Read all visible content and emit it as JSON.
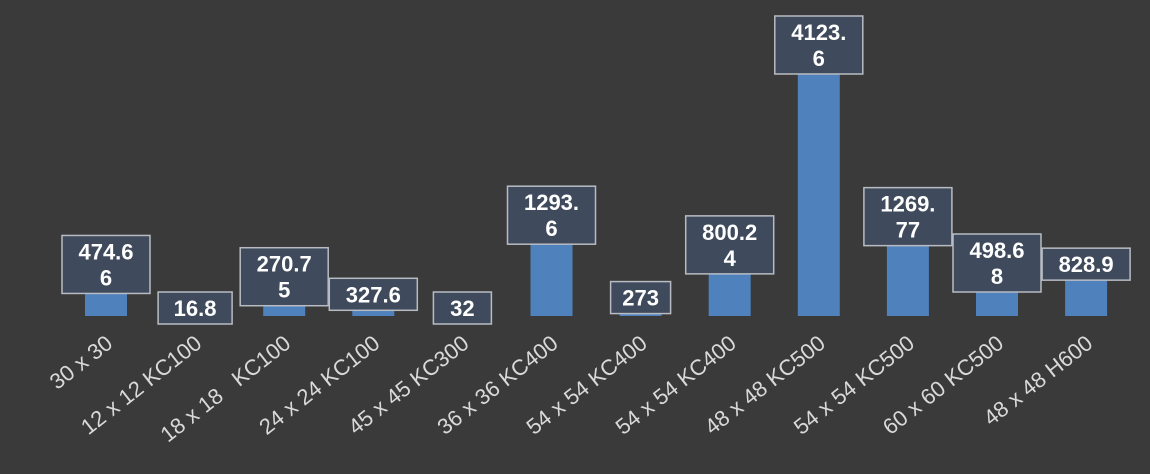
{
  "chart_data": {
    "type": "bar",
    "title": "",
    "xlabel": "",
    "ylabel": "",
    "ylim": [
      0,
      4123.6
    ],
    "grid": false,
    "legend": "none",
    "bar_color": "#4f81bd",
    "background": "#3a3a3a",
    "categories": [
      "30 x 30",
      "12 x 12 KC100",
      "18 x 18   KC100",
      "24 x 24 KC100",
      "45 x 45 KC300",
      "36 x 36 KC400",
      "54 x 54 KC400",
      "54 x 54 KC400",
      "48 x 48 KC500",
      "54 x 54 KC500",
      "60 x 60 KC500",
      "48 x 48 H600"
    ],
    "values": [
      474.66,
      16.8,
      270.75,
      327.6,
      32,
      1293.6,
      273,
      800.24,
      4123.6,
      1269.77,
      498.68,
      828.9
    ],
    "data_labels": [
      [
        "474.6",
        "6"
      ],
      [
        "16.8"
      ],
      [
        "270.7",
        "5"
      ],
      [
        "327.6"
      ],
      [
        "32"
      ],
      [
        "1293.",
        "6"
      ],
      [
        "273"
      ],
      [
        "800.2",
        "4"
      ],
      [
        "4123.",
        "6"
      ],
      [
        "1269.",
        "77"
      ],
      [
        "498.6",
        "8"
      ],
      [
        "828.9"
      ]
    ]
  }
}
